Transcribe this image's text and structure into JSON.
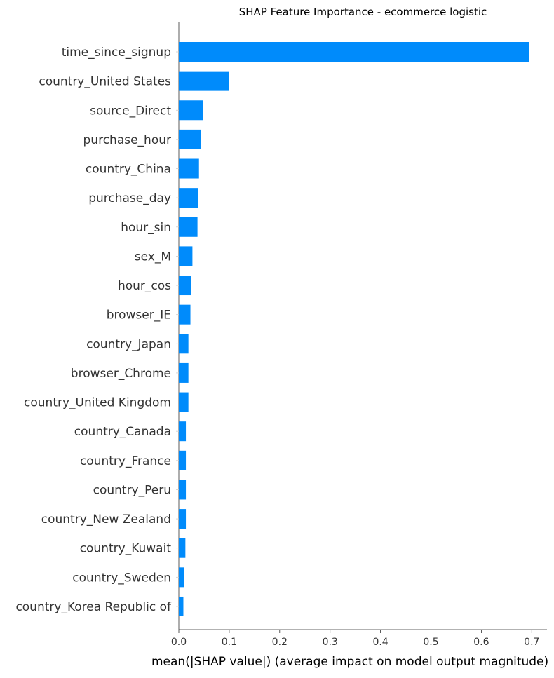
{
  "chart_data": {
    "type": "bar",
    "orientation": "horizontal",
    "title": "SHAP Feature Importance - ecommerce logistic",
    "xlabel": "mean(|SHAP value|) (average impact on model output magnitude)",
    "ylabel": "",
    "xlim": [
      0,
      0.72
    ],
    "grid": false,
    "bar_color": "#008bfb",
    "xticks": [
      "0.0",
      "0.1",
      "0.2",
      "0.3",
      "0.4",
      "0.5",
      "0.6",
      "0.7"
    ],
    "categories": [
      "time_since_signup",
      "country_United States",
      "source_Direct",
      "purchase_hour",
      "country_China",
      "purchase_day",
      "hour_sin",
      "sex_M",
      "hour_cos",
      "browser_IE",
      "country_Japan",
      "browser_Chrome",
      "country_United Kingdom",
      "country_Canada",
      "country_France",
      "country_Peru",
      "country_New Zealand",
      "country_Kuwait",
      "country_Sweden",
      "country_Korea Republic of"
    ],
    "values": [
      0.695,
      0.1,
      0.048,
      0.044,
      0.04,
      0.038,
      0.037,
      0.027,
      0.025,
      0.023,
      0.019,
      0.019,
      0.019,
      0.014,
      0.014,
      0.014,
      0.014,
      0.013,
      0.011,
      0.009
    ]
  }
}
